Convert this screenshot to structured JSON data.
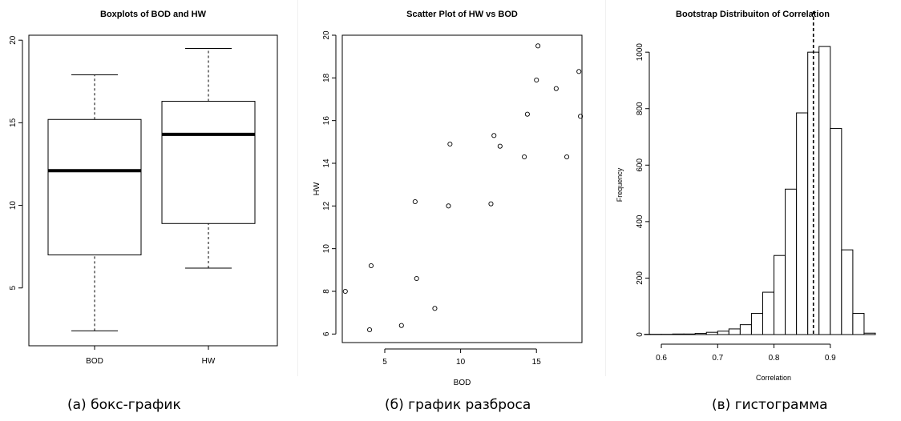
{
  "chart_data": [
    {
      "type": "box",
      "title": "Boxplots of BOD and HW",
      "xlabel": "",
      "ylabel": "",
      "categories": [
        "BOD",
        "HW"
      ],
      "boxes": [
        {
          "name": "BOD",
          "min": 2.4,
          "q1": 7.0,
          "median": 12.1,
          "q3": 15.2,
          "max": 17.9
        },
        {
          "name": "HW",
          "min": 6.2,
          "q1": 8.9,
          "median": 14.3,
          "q3": 16.3,
          "max": 19.5
        }
      ],
      "ylim": [
        1.5,
        20.3
      ],
      "yticks": [
        5,
        10,
        15,
        20
      ],
      "caption": "(а) бокс-график"
    },
    {
      "type": "scatter",
      "title": "Scatter Plot of HW vs BOD",
      "xlabel": "BOD",
      "ylabel": "HW",
      "xlim": [
        2.2,
        18.0
      ],
      "ylim": [
        5.6,
        20.0
      ],
      "xticks": [
        5,
        10,
        15
      ],
      "yticks": [
        6,
        8,
        10,
        12,
        14,
        16,
        18,
        20
      ],
      "points": [
        {
          "x": 2.4,
          "y": 8.0
        },
        {
          "x": 4.0,
          "y": 6.2
        },
        {
          "x": 4.1,
          "y": 9.2
        },
        {
          "x": 6.1,
          "y": 6.4
        },
        {
          "x": 7.0,
          "y": 12.2
        },
        {
          "x": 7.1,
          "y": 8.6
        },
        {
          "x": 8.3,
          "y": 7.2
        },
        {
          "x": 9.2,
          "y": 12.0
        },
        {
          "x": 9.3,
          "y": 14.9
        },
        {
          "x": 12.0,
          "y": 12.1
        },
        {
          "x": 12.2,
          "y": 15.3
        },
        {
          "x": 12.6,
          "y": 14.8
        },
        {
          "x": 14.2,
          "y": 14.3
        },
        {
          "x": 14.4,
          "y": 16.3
        },
        {
          "x": 15.1,
          "y": 19.5
        },
        {
          "x": 15.0,
          "y": 17.9
        },
        {
          "x": 16.3,
          "y": 17.5
        },
        {
          "x": 17.0,
          "y": 14.3
        },
        {
          "x": 17.8,
          "y": 18.3
        },
        {
          "x": 17.9,
          "y": 16.2
        }
      ],
      "caption": "(б) график разброса"
    },
    {
      "type": "histogram",
      "title": "Bootstrap Distribuiton of Correlation",
      "xlabel": "Correlation",
      "ylabel": "Frequency",
      "xlim": [
        0.59,
        0.98
      ],
      "ylim": [
        0,
        1060
      ],
      "xticks": [
        0.6,
        0.7,
        0.8,
        0.9
      ],
      "yticks": [
        0,
        200,
        400,
        600,
        800,
        1000
      ],
      "bin_edges": [
        0.56,
        0.58,
        0.6,
        0.62,
        0.64,
        0.66,
        0.68,
        0.7,
        0.72,
        0.74,
        0.76,
        0.78,
        0.8,
        0.82,
        0.84,
        0.86,
        0.88,
        0.9,
        0.92,
        0.94,
        0.96,
        0.98
      ],
      "counts": [
        1,
        1,
        1,
        2,
        2,
        4,
        8,
        12,
        20,
        35,
        75,
        150,
        280,
        515,
        785,
        1000,
        1020,
        730,
        300,
        75,
        5
      ],
      "reference_line": 0.87,
      "caption": "(в) гистограмма"
    }
  ]
}
